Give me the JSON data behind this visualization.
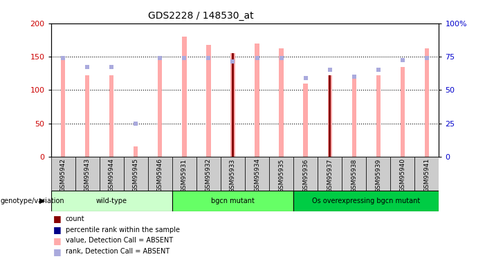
{
  "title": "GDS2228 / 148530_at",
  "samples": [
    "GSM95942",
    "GSM95943",
    "GSM95944",
    "GSM95945",
    "GSM95946",
    "GSM95931",
    "GSM95932",
    "GSM95933",
    "GSM95934",
    "GSM95935",
    "GSM95936",
    "GSM95937",
    "GSM95938",
    "GSM95939",
    "GSM95940",
    "GSM95941"
  ],
  "value_bars": [
    148,
    122,
    122,
    15,
    145,
    180,
    168,
    155,
    170,
    162,
    110,
    122,
    122,
    122,
    135,
    162
  ],
  "rank_vals": [
    148,
    135,
    135,
    50,
    148,
    148,
    148,
    143,
    148,
    148,
    118,
    130,
    120,
    130,
    145,
    148
  ],
  "count_bars": [
    0,
    0,
    0,
    0,
    0,
    0,
    0,
    155,
    0,
    0,
    0,
    122,
    0,
    0,
    0,
    0
  ],
  "pct_vals": [
    0,
    0,
    0,
    0,
    0,
    0,
    0,
    143,
    0,
    0,
    0,
    130,
    0,
    0,
    0,
    0
  ],
  "ylim_left": [
    0,
    200
  ],
  "ylim_right": [
    0,
    100
  ],
  "yticks_left": [
    0,
    50,
    100,
    150,
    200
  ],
  "yticks_right": [
    0,
    25,
    50,
    75,
    100
  ],
  "groups": [
    {
      "label": "wild-type",
      "start": 0,
      "end": 4,
      "color": "#ccffcc"
    },
    {
      "label": "bgcn mutant",
      "start": 5,
      "end": 9,
      "color": "#66ff66"
    },
    {
      "label": "Os overexpressing bgcn mutant",
      "start": 10,
      "end": 15,
      "color": "#00cc44"
    }
  ],
  "value_bar_color": "#ffaaaa",
  "rank_marker_color": "#aaaadd",
  "count_bar_color": "#880000",
  "pct_marker_color": "#000088",
  "background_color": "#ffffff",
  "tick_label_color_left": "#cc0000",
  "tick_label_color_right": "#0000cc",
  "xticklabel_bg": "#cccccc"
}
